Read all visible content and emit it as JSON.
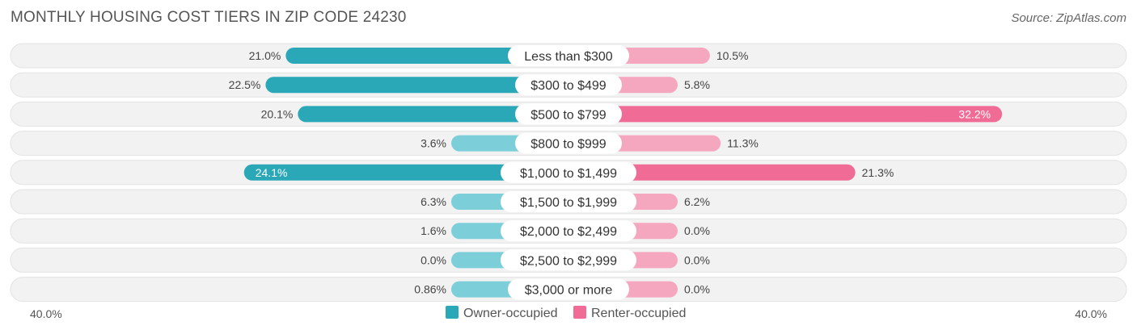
{
  "chart_data": {
    "type": "bar",
    "title": "MONTHLY HOUSING COST TIERS IN ZIP CODE 24230",
    "source": "Source: ZipAtlas.com",
    "axis_min_label": "40.0%",
    "axis_max_label": "40.0%",
    "max_value": 40,
    "categories": [
      "Less than $300",
      "$300 to $499",
      "$500 to $799",
      "$800 to $999",
      "$1,000 to $1,499",
      "$1,500 to $1,999",
      "$2,000 to $2,499",
      "$2,500 to $2,999",
      "$3,000 or more"
    ],
    "series": [
      {
        "name": "Owner-occupied",
        "color": "#2ba8b8",
        "values": [
          21.0,
          22.5,
          20.1,
          3.6,
          24.1,
          6.3,
          1.6,
          0.0,
          0.86
        ],
        "labels": [
          "21.0%",
          "22.5%",
          "20.1%",
          "3.6%",
          "24.1%",
          "6.3%",
          "1.6%",
          "0.0%",
          "0.86%"
        ]
      },
      {
        "name": "Renter-occupied",
        "color": "#f06b96",
        "values": [
          10.5,
          5.8,
          32.2,
          11.3,
          21.3,
          6.2,
          0.0,
          0.0,
          0.0
        ],
        "labels": [
          "10.5%",
          "5.8%",
          "32.2%",
          "11.3%",
          "21.3%",
          "6.2%",
          "0.0%",
          "0.0%",
          "0.0%"
        ]
      }
    ],
    "legend_position": "bottom-center"
  }
}
